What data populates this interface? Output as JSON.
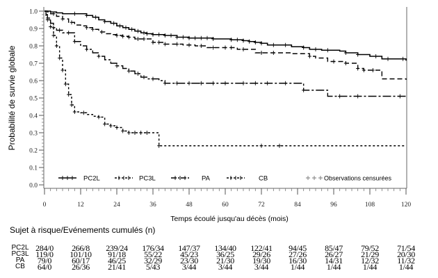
{
  "chart_data": {
    "type": "line",
    "subtype": "kaplan-meier",
    "title": "",
    "xlabel": "Temps écoulé jusqu'au décès (mois)",
    "ylabel": "Probabilité de survie globale",
    "xlim": [
      0,
      120
    ],
    "ylim": [
      0,
      1.0
    ],
    "x_ticks": [
      0,
      12,
      24,
      36,
      48,
      60,
      72,
      84,
      96,
      108,
      120
    ],
    "y_ticks": [
      0.0,
      0.1,
      0.2,
      0.3,
      0.4,
      0.5,
      0.6,
      0.7,
      0.8,
      0.9,
      1.0
    ],
    "y_tick_labels": [
      "0.0",
      "0.1",
      "0.2",
      "0.3",
      "0.4",
      "0.5",
      "0.6",
      "0.7",
      "0.8",
      "0.9",
      "1.0"
    ],
    "grid": false,
    "legend_position": "bottom-inside",
    "legend": {
      "entries": [
        "PC2L",
        "PC3L",
        "PA",
        "CB"
      ],
      "censored_label": "Observations censurées"
    },
    "series": [
      {
        "name": "PC2L",
        "style": "solid",
        "x": [
          0,
          1,
          2,
          4,
          6,
          8,
          10,
          12,
          14,
          16,
          18,
          20,
          22,
          24,
          26,
          28,
          30,
          32,
          34,
          36,
          40,
          44,
          48,
          56,
          62,
          66,
          68,
          70,
          72,
          74,
          82,
          86,
          88,
          92,
          98,
          100,
          104,
          108,
          112,
          120
        ],
        "y": [
          1.0,
          1.0,
          0.995,
          0.99,
          0.985,
          0.985,
          0.985,
          0.985,
          0.975,
          0.965,
          0.95,
          0.94,
          0.93,
          0.915,
          0.905,
          0.895,
          0.885,
          0.875,
          0.87,
          0.865,
          0.86,
          0.85,
          0.845,
          0.84,
          0.835,
          0.83,
          0.825,
          0.82,
          0.815,
          0.805,
          0.795,
          0.79,
          0.78,
          0.775,
          0.77,
          0.76,
          0.75,
          0.74,
          0.725,
          0.715
        ],
        "censored_x": [
          10,
          14,
          17,
          20,
          23,
          25,
          27,
          29,
          31,
          33,
          34,
          36,
          38,
          40,
          42,
          44,
          46,
          48,
          50,
          52,
          54,
          56,
          62,
          64,
          66,
          68,
          70,
          72,
          76,
          80,
          86,
          90,
          94,
          100,
          104,
          110,
          114,
          119
        ]
      },
      {
        "name": "PC3L",
        "style": "dashed",
        "x": [
          0,
          1,
          2,
          4,
          6,
          8,
          10,
          12,
          14,
          16,
          18,
          20,
          22,
          24,
          26,
          28,
          30,
          36,
          40,
          46,
          50,
          54,
          64,
          70,
          82,
          88,
          90,
          94,
          100,
          104,
          106,
          112,
          120
        ],
        "y": [
          1.0,
          0.995,
          0.985,
          0.97,
          0.955,
          0.935,
          0.92,
          0.915,
          0.905,
          0.895,
          0.88,
          0.87,
          0.865,
          0.86,
          0.855,
          0.85,
          0.84,
          0.82,
          0.81,
          0.805,
          0.8,
          0.79,
          0.78,
          0.76,
          0.755,
          0.74,
          0.73,
          0.71,
          0.7,
          0.67,
          0.66,
          0.61,
          0.605
        ],
        "censored_x": [
          3,
          6,
          9,
          14,
          16,
          19,
          24,
          26,
          28,
          31,
          33,
          36,
          38,
          40,
          44,
          48,
          52,
          56,
          60,
          62,
          66,
          72,
          76,
          88,
          96,
          100,
          104,
          106,
          109
        ]
      },
      {
        "name": "PA",
        "style": "dash-dot",
        "x": [
          0,
          0.5,
          1,
          2,
          3,
          4,
          6,
          8,
          10,
          12,
          14,
          16,
          18,
          20,
          22,
          24,
          26,
          28,
          30,
          32,
          34,
          38,
          40,
          60,
          76,
          86,
          94,
          120
        ],
        "y": [
          1.0,
          0.98,
          0.96,
          0.93,
          0.905,
          0.89,
          0.875,
          0.875,
          0.825,
          0.8,
          0.78,
          0.76,
          0.74,
          0.72,
          0.7,
          0.685,
          0.67,
          0.655,
          0.64,
          0.62,
          0.61,
          0.6,
          0.585,
          0.585,
          0.585,
          0.545,
          0.51,
          0.51
        ],
        "censored_x": [
          1,
          3,
          5,
          8,
          10,
          14,
          18,
          24,
          28,
          31,
          33,
          36,
          40,
          44,
          48,
          52,
          56,
          60,
          66,
          70,
          74,
          80,
          86,
          98,
          104,
          118
        ]
      },
      {
        "name": "CB",
        "style": "short-dash",
        "x": [
          0,
          0.5,
          1,
          2,
          3,
          4,
          5,
          6,
          7,
          8,
          9,
          10,
          12,
          14,
          16,
          18,
          20,
          22,
          24,
          26,
          28,
          38,
          120
        ],
        "y": [
          1.0,
          0.97,
          0.95,
          0.91,
          0.86,
          0.8,
          0.73,
          0.66,
          0.58,
          0.52,
          0.46,
          0.42,
          0.415,
          0.405,
          0.395,
          0.39,
          0.35,
          0.34,
          0.33,
          0.31,
          0.3,
          0.225,
          0.225
        ],
        "censored_x": [
          1,
          2,
          3,
          4,
          5,
          6,
          7,
          8,
          9,
          10,
          13,
          18,
          20,
          22,
          24,
          26,
          28,
          30,
          32,
          34,
          38,
          72,
          78
        ]
      }
    ]
  },
  "risk_table": {
    "title": "Sujet à risque/Evénements cumulés (n)",
    "timepoints": [
      0,
      12,
      24,
      36,
      48,
      60,
      72,
      84,
      96,
      108,
      120
    ],
    "rows": [
      {
        "label": "PC2L",
        "values": [
          "284/0",
          "266/8",
          "239/24",
          "176/34",
          "147/37",
          "134/40",
          "122/41",
          "94/45",
          "85/47",
          "79/52",
          "71/54"
        ]
      },
      {
        "label": "PC3L",
        "values": [
          "119/0",
          "101/10",
          "91/18",
          "55/22",
          "45/23",
          "36/25",
          "29/26",
          "27/26",
          "26/27",
          "21/29",
          "20/30"
        ]
      },
      {
        "label": "PA",
        "values": [
          "79/0",
          "60/17",
          "46/25",
          "32/29",
          "23/30",
          "21/30",
          "19/30",
          "16/30",
          "14/31",
          "12/32",
          "11/32"
        ]
      },
      {
        "label": "CB",
        "values": [
          "64/0",
          "26/36",
          "21/41",
          "5/43",
          "3/44",
          "3/44",
          "3/44",
          "1/44",
          "1/44",
          "1/44",
          "1/44"
        ]
      }
    ]
  }
}
